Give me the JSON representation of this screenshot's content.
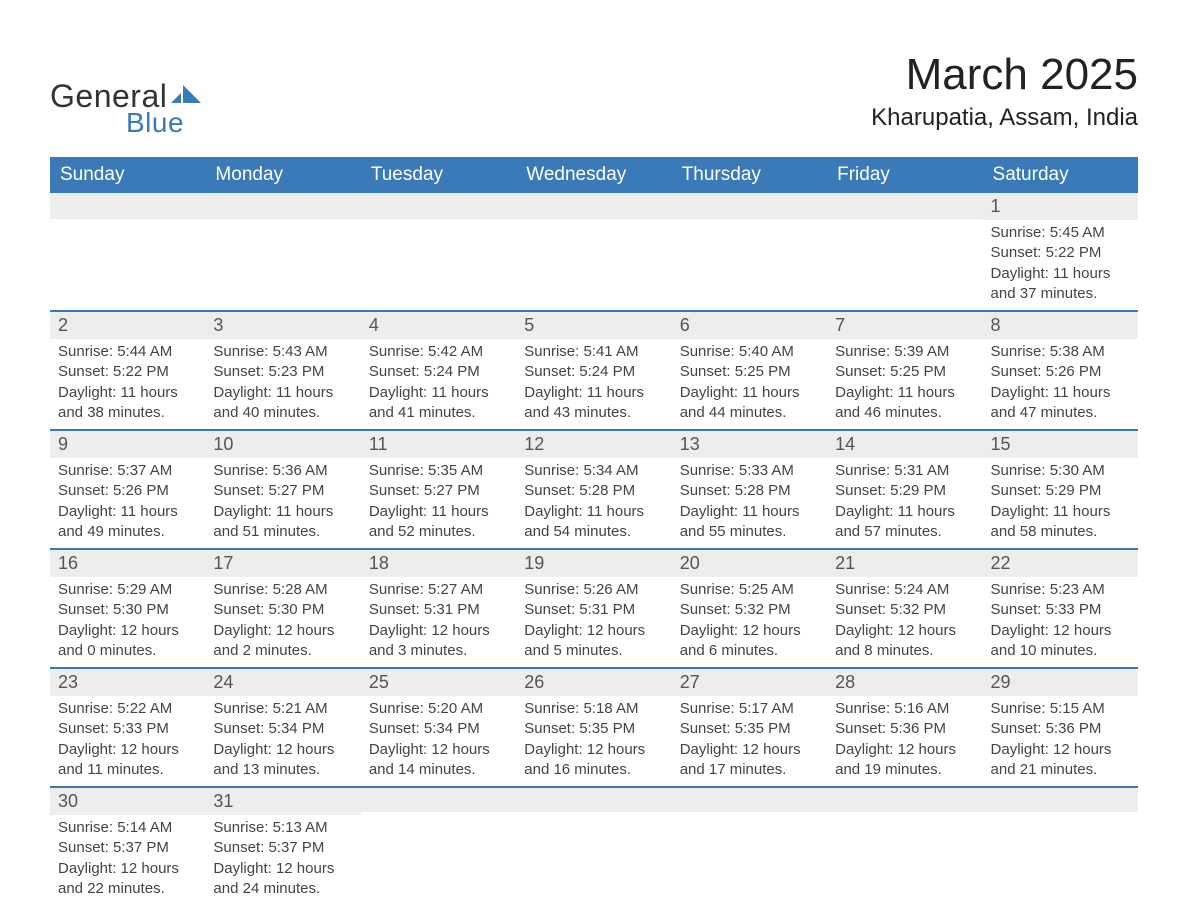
{
  "logo": {
    "text1": "General",
    "text2": "Blue",
    "brand_color": "#3a7ab8",
    "text1_color": "#333333"
  },
  "title": "March 2025",
  "location": "Kharupatia, Assam, India",
  "colors": {
    "header_bg": "#3a7ab8",
    "header_text": "#ffffff",
    "daybar_bg": "#ededed",
    "daybar_text": "#555555",
    "body_text": "#444444",
    "row_divider": "#3a7ab8",
    "page_bg": "#ffffff"
  },
  "fonts": {
    "title_size_pt": 33,
    "location_size_pt": 18,
    "dayheader_size_pt": 14,
    "daynum_size_pt": 14,
    "body_size_pt": 11
  },
  "day_headers": [
    "Sunday",
    "Monday",
    "Tuesday",
    "Wednesday",
    "Thursday",
    "Friday",
    "Saturday"
  ],
  "weeks": [
    [
      null,
      null,
      null,
      null,
      null,
      null,
      {
        "n": "1",
        "sunrise": "Sunrise: 5:45 AM",
        "sunset": "Sunset: 5:22 PM",
        "daylight": "Daylight: 11 hours and 37 minutes."
      }
    ],
    [
      {
        "n": "2",
        "sunrise": "Sunrise: 5:44 AM",
        "sunset": "Sunset: 5:22 PM",
        "daylight": "Daylight: 11 hours and 38 minutes."
      },
      {
        "n": "3",
        "sunrise": "Sunrise: 5:43 AM",
        "sunset": "Sunset: 5:23 PM",
        "daylight": "Daylight: 11 hours and 40 minutes."
      },
      {
        "n": "4",
        "sunrise": "Sunrise: 5:42 AM",
        "sunset": "Sunset: 5:24 PM",
        "daylight": "Daylight: 11 hours and 41 minutes."
      },
      {
        "n": "5",
        "sunrise": "Sunrise: 5:41 AM",
        "sunset": "Sunset: 5:24 PM",
        "daylight": "Daylight: 11 hours and 43 minutes."
      },
      {
        "n": "6",
        "sunrise": "Sunrise: 5:40 AM",
        "sunset": "Sunset: 5:25 PM",
        "daylight": "Daylight: 11 hours and 44 minutes."
      },
      {
        "n": "7",
        "sunrise": "Sunrise: 5:39 AM",
        "sunset": "Sunset: 5:25 PM",
        "daylight": "Daylight: 11 hours and 46 minutes."
      },
      {
        "n": "8",
        "sunrise": "Sunrise: 5:38 AM",
        "sunset": "Sunset: 5:26 PM",
        "daylight": "Daylight: 11 hours and 47 minutes."
      }
    ],
    [
      {
        "n": "9",
        "sunrise": "Sunrise: 5:37 AM",
        "sunset": "Sunset: 5:26 PM",
        "daylight": "Daylight: 11 hours and 49 minutes."
      },
      {
        "n": "10",
        "sunrise": "Sunrise: 5:36 AM",
        "sunset": "Sunset: 5:27 PM",
        "daylight": "Daylight: 11 hours and 51 minutes."
      },
      {
        "n": "11",
        "sunrise": "Sunrise: 5:35 AM",
        "sunset": "Sunset: 5:27 PM",
        "daylight": "Daylight: 11 hours and 52 minutes."
      },
      {
        "n": "12",
        "sunrise": "Sunrise: 5:34 AM",
        "sunset": "Sunset: 5:28 PM",
        "daylight": "Daylight: 11 hours and 54 minutes."
      },
      {
        "n": "13",
        "sunrise": "Sunrise: 5:33 AM",
        "sunset": "Sunset: 5:28 PM",
        "daylight": "Daylight: 11 hours and 55 minutes."
      },
      {
        "n": "14",
        "sunrise": "Sunrise: 5:31 AM",
        "sunset": "Sunset: 5:29 PM",
        "daylight": "Daylight: 11 hours and 57 minutes."
      },
      {
        "n": "15",
        "sunrise": "Sunrise: 5:30 AM",
        "sunset": "Sunset: 5:29 PM",
        "daylight": "Daylight: 11 hours and 58 minutes."
      }
    ],
    [
      {
        "n": "16",
        "sunrise": "Sunrise: 5:29 AM",
        "sunset": "Sunset: 5:30 PM",
        "daylight": "Daylight: 12 hours and 0 minutes."
      },
      {
        "n": "17",
        "sunrise": "Sunrise: 5:28 AM",
        "sunset": "Sunset: 5:30 PM",
        "daylight": "Daylight: 12 hours and 2 minutes."
      },
      {
        "n": "18",
        "sunrise": "Sunrise: 5:27 AM",
        "sunset": "Sunset: 5:31 PM",
        "daylight": "Daylight: 12 hours and 3 minutes."
      },
      {
        "n": "19",
        "sunrise": "Sunrise: 5:26 AM",
        "sunset": "Sunset: 5:31 PM",
        "daylight": "Daylight: 12 hours and 5 minutes."
      },
      {
        "n": "20",
        "sunrise": "Sunrise: 5:25 AM",
        "sunset": "Sunset: 5:32 PM",
        "daylight": "Daylight: 12 hours and 6 minutes."
      },
      {
        "n": "21",
        "sunrise": "Sunrise: 5:24 AM",
        "sunset": "Sunset: 5:32 PM",
        "daylight": "Daylight: 12 hours and 8 minutes."
      },
      {
        "n": "22",
        "sunrise": "Sunrise: 5:23 AM",
        "sunset": "Sunset: 5:33 PM",
        "daylight": "Daylight: 12 hours and 10 minutes."
      }
    ],
    [
      {
        "n": "23",
        "sunrise": "Sunrise: 5:22 AM",
        "sunset": "Sunset: 5:33 PM",
        "daylight": "Daylight: 12 hours and 11 minutes."
      },
      {
        "n": "24",
        "sunrise": "Sunrise: 5:21 AM",
        "sunset": "Sunset: 5:34 PM",
        "daylight": "Daylight: 12 hours and 13 minutes."
      },
      {
        "n": "25",
        "sunrise": "Sunrise: 5:20 AM",
        "sunset": "Sunset: 5:34 PM",
        "daylight": "Daylight: 12 hours and 14 minutes."
      },
      {
        "n": "26",
        "sunrise": "Sunrise: 5:18 AM",
        "sunset": "Sunset: 5:35 PM",
        "daylight": "Daylight: 12 hours and 16 minutes."
      },
      {
        "n": "27",
        "sunrise": "Sunrise: 5:17 AM",
        "sunset": "Sunset: 5:35 PM",
        "daylight": "Daylight: 12 hours and 17 minutes."
      },
      {
        "n": "28",
        "sunrise": "Sunrise: 5:16 AM",
        "sunset": "Sunset: 5:36 PM",
        "daylight": "Daylight: 12 hours and 19 minutes."
      },
      {
        "n": "29",
        "sunrise": "Sunrise: 5:15 AM",
        "sunset": "Sunset: 5:36 PM",
        "daylight": "Daylight: 12 hours and 21 minutes."
      }
    ],
    [
      {
        "n": "30",
        "sunrise": "Sunrise: 5:14 AM",
        "sunset": "Sunset: 5:37 PM",
        "daylight": "Daylight: 12 hours and 22 minutes."
      },
      {
        "n": "31",
        "sunrise": "Sunrise: 5:13 AM",
        "sunset": "Sunset: 5:37 PM",
        "daylight": "Daylight: 12 hours and 24 minutes."
      },
      null,
      null,
      null,
      null,
      null
    ]
  ]
}
